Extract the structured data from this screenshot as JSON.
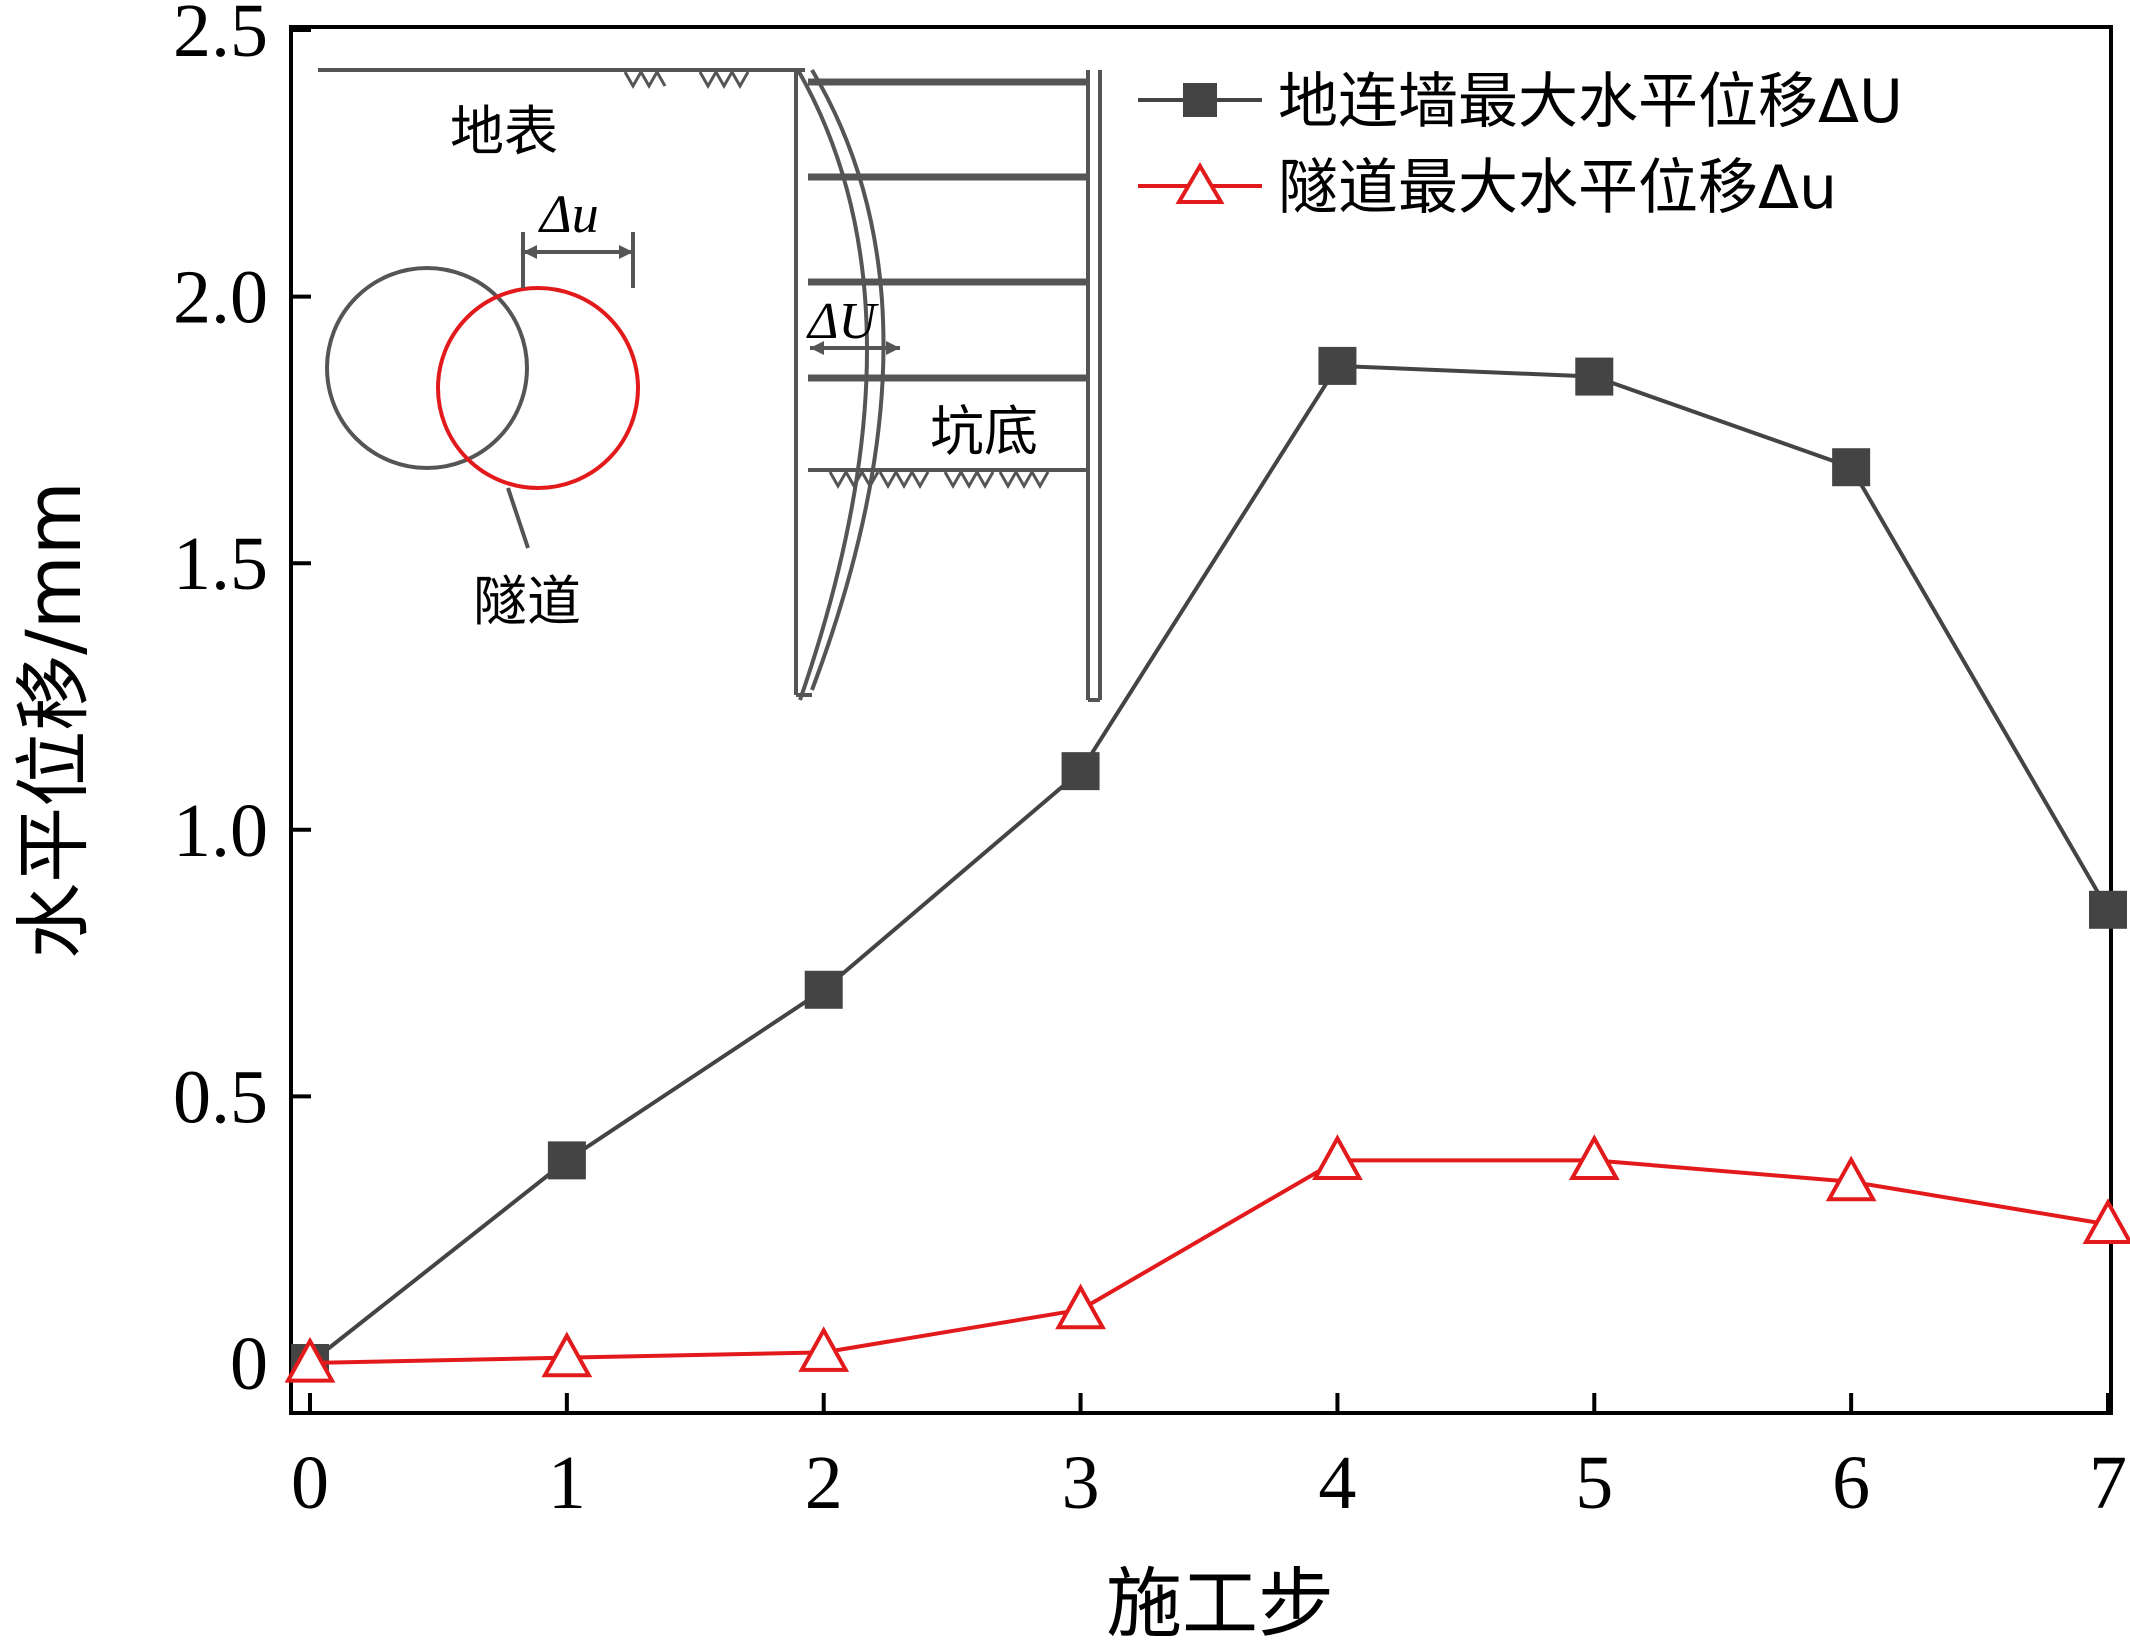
{
  "chart_data": {
    "type": "line",
    "x": [
      0,
      1,
      2,
      3,
      4,
      5,
      6,
      7
    ],
    "xlabel": "施工步",
    "ylabel": "水平位移/mm",
    "xlim": [
      0,
      7
    ],
    "ylim": [
      0,
      2.5
    ],
    "xticks": [
      "0",
      "1",
      "2",
      "3",
      "4",
      "5",
      "6",
      "7"
    ],
    "yticks": [
      "0",
      "0.5",
      "1.0",
      "1.5",
      "2.0",
      "2.5"
    ],
    "grid": false,
    "legend_position": "top-right",
    "series": [
      {
        "name": "地连墙最大水平位移ΔU",
        "marker": "square",
        "color": "#444444",
        "values": [
          0.0,
          0.38,
          0.7,
          1.11,
          1.87,
          1.85,
          1.68,
          0.85
        ]
      },
      {
        "name": "隧道最大水平位移Δu",
        "marker": "triangle",
        "color": "#e31a1c",
        "values": [
          0.0,
          0.01,
          0.02,
          0.1,
          0.38,
          0.38,
          0.34,
          0.26
        ]
      }
    ],
    "inset_labels": {
      "ground": "地表",
      "tunnel_disp": "Δu",
      "wall_disp": "ΔU",
      "pit_bottom": "坑底",
      "tunnel": "隧道"
    }
  }
}
